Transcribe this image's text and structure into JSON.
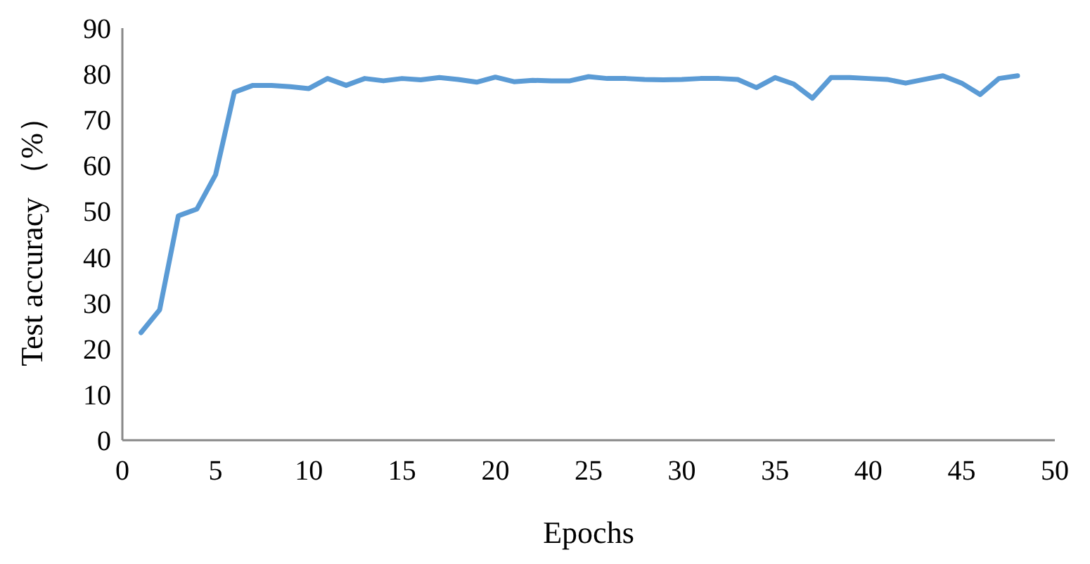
{
  "chart_data": {
    "type": "line",
    "xlabel": "Epochs",
    "ylabel": "Test accuracy （%）",
    "x": [
      1,
      2,
      3,
      4,
      5,
      6,
      7,
      8,
      9,
      10,
      11,
      12,
      13,
      14,
      15,
      16,
      17,
      18,
      19,
      20,
      21,
      22,
      23,
      24,
      25,
      26,
      27,
      28,
      29,
      30,
      31,
      32,
      33,
      34,
      35,
      36,
      37,
      38,
      39,
      40,
      41,
      42,
      43,
      44,
      45,
      46,
      47,
      48
    ],
    "series": [
      {
        "color": "#5b9bd5",
        "values": [
          23.5,
          28.5,
          49,
          50.5,
          58,
          76,
          77.5,
          77.5,
          77.2,
          76.8,
          79,
          77.5,
          79,
          78.5,
          79,
          78.7,
          79.2,
          78.8,
          78.2,
          79.3,
          78.3,
          78.6,
          78.5,
          78.5,
          79.4,
          79,
          79,
          78.8,
          78.7,
          78.8,
          79,
          79,
          78.8,
          77,
          79.2,
          77.8,
          74.7,
          79.2,
          79.2,
          79,
          78.8,
          78,
          78.8,
          79.6,
          78,
          75.5,
          79,
          79.6
        ]
      }
    ],
    "xlim": [
      0,
      50
    ],
    "xticks": [
      0,
      5,
      10,
      15,
      20,
      25,
      30,
      35,
      40,
      45,
      50
    ],
    "ylim": [
      0,
      90
    ],
    "yticks": [
      0,
      10,
      20,
      30,
      40,
      50,
      60,
      70,
      80,
      90
    ],
    "grid": false,
    "marker": "none",
    "line_style": "solid"
  }
}
